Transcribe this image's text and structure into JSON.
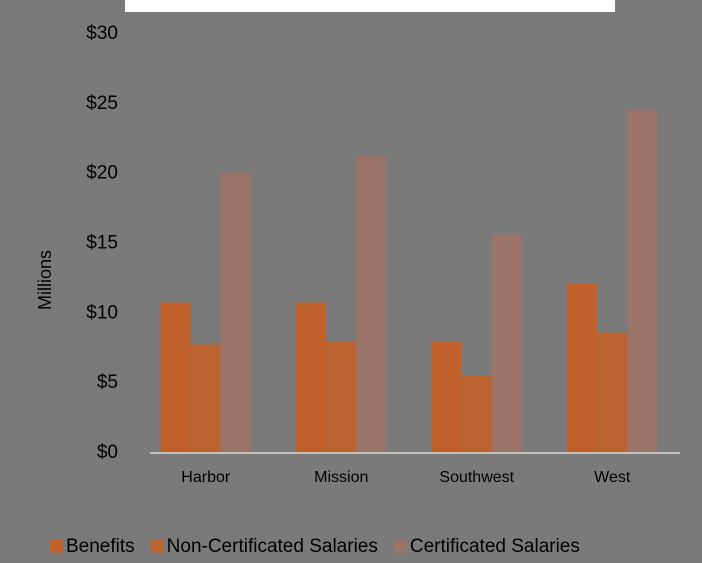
{
  "chart_data": {
    "type": "bar",
    "y_axis_label": "Millions",
    "categories": [
      "Harbor",
      "Mission",
      "Southwest",
      "West"
    ],
    "series": [
      {
        "name": "Benefits",
        "color": "#c0612b",
        "values": [
          10.74,
          10.74,
          7.95,
          12.1
        ]
      },
      {
        "name": "Non-Certificated Salaries",
        "color": "#bb6430",
        "values": [
          7.73,
          7.95,
          5.51,
          8.59
        ]
      },
      {
        "name": "Certificated Salaries",
        "color": "#9b7367",
        "values": [
          20.04,
          21.26,
          15.6,
          24.55
        ]
      }
    ],
    "ylim": [
      0,
      30
    ],
    "yticks": [
      {
        "value": 0,
        "label": "$0"
      },
      {
        "value": 5,
        "label": "$5"
      },
      {
        "value": 10,
        "label": "$10"
      },
      {
        "value": 15,
        "label": "$15"
      },
      {
        "value": 20,
        "label": "$20"
      },
      {
        "value": 25,
        "label": "$25"
      },
      {
        "value": 30,
        "label": "$30"
      }
    ],
    "grid": false,
    "legend": "bottom"
  }
}
